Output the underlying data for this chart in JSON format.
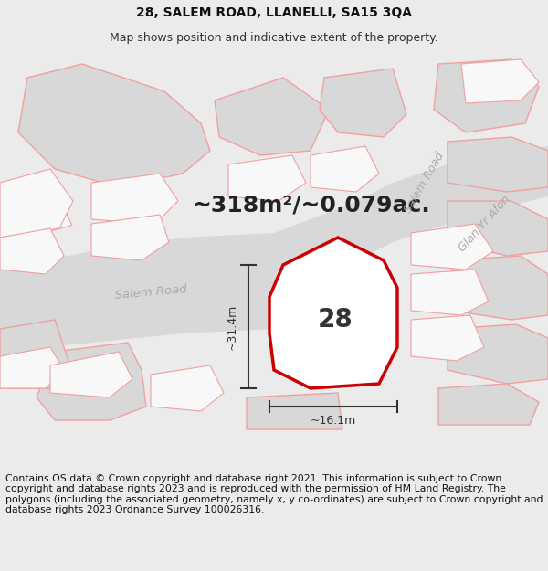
{
  "title": "28, SALEM ROAD, LLANELLI, SA15 3QA",
  "subtitle": "Map shows position and indicative extent of the property.",
  "area_text": "~318m²/~0.079ac.",
  "width_text": "~16.1m",
  "height_text": "~31.4m",
  "number_text": "28",
  "footer_text": "Contains OS data © Crown copyright and database right 2021. This information is subject to Crown copyright and database rights 2023 and is reproduced with the permission of HM Land Registry. The polygons (including the associated geometry, namely x, y co-ordinates) are subject to Crown copyright and database rights 2023 Ordnance Survey 100026316.",
  "bg_color": "#e8e8e8",
  "map_bg": "#ebebeb",
  "property_fill": "#ffffff",
  "property_edge": "#cc0000",
  "road_fill": "#d8d8d8",
  "road_edge": "#cccccc",
  "other_poly_edge": "#f0a0a0",
  "other_poly_fill": "#f8f8f8",
  "dark_poly_fill": "#d8d8d8",
  "title_fontsize": 10,
  "subtitle_fontsize": 9,
  "footer_fontsize": 7.8,
  "area_fontsize": 18,
  "number_fontsize": 20,
  "road_label_color": "#aaaaaa",
  "dim_color": "#333333"
}
